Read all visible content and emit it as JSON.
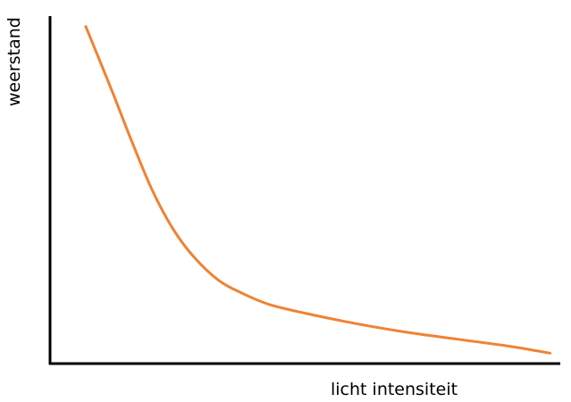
{
  "chart_data": {
    "type": "line",
    "title": "",
    "xlabel": "licht intensiteit",
    "ylabel": "weerstand",
    "xticks": [],
    "yticks": [],
    "grid": false,
    "legend": "none",
    "xlim": [
      0,
      100
    ],
    "ylim": [
      0,
      100
    ],
    "series": [
      {
        "color": "#F08233",
        "x": [
          7,
          12,
          16,
          20,
          24,
          28,
          33,
          38,
          43,
          50,
          60,
          70,
          80,
          90,
          98
        ],
        "y": [
          97,
          79,
          64,
          50,
          39,
          31,
          24,
          20,
          17,
          14.5,
          11.5,
          9,
          7,
          5,
          3
        ]
      }
    ],
    "axis_color": "#000000"
  }
}
